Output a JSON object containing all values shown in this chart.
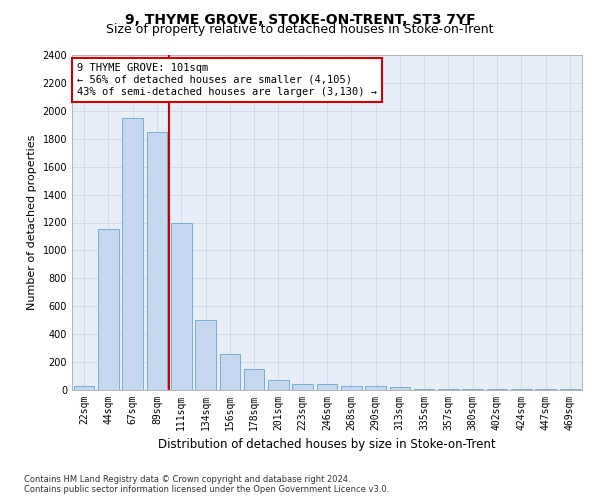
{
  "title": "9, THYME GROVE, STOKE-ON-TRENT, ST3 7YF",
  "subtitle": "Size of property relative to detached houses in Stoke-on-Trent",
  "xlabel": "Distribution of detached houses by size in Stoke-on-Trent",
  "ylabel": "Number of detached properties",
  "categories": [
    "22sqm",
    "44sqm",
    "67sqm",
    "89sqm",
    "111sqm",
    "134sqm",
    "156sqm",
    "178sqm",
    "201sqm",
    "223sqm",
    "246sqm",
    "268sqm",
    "290sqm",
    "313sqm",
    "335sqm",
    "357sqm",
    "380sqm",
    "402sqm",
    "424sqm",
    "447sqm",
    "469sqm"
  ],
  "values": [
    30,
    1150,
    1950,
    1850,
    1200,
    500,
    260,
    150,
    70,
    40,
    40,
    30,
    30,
    20,
    10,
    10,
    10,
    10,
    10,
    5,
    5
  ],
  "bar_color": "#c5d8ef",
  "bar_edge_color": "#7aadd4",
  "grid_color": "#cdd8ea",
  "vline_x": 3.5,
  "vline_color": "#cc0000",
  "annotation_text": "9 THYME GROVE: 101sqm\n← 56% of detached houses are smaller (4,105)\n43% of semi-detached houses are larger (3,130) →",
  "annotation_box_color": "#ffffff",
  "annotation_box_edge": "#cc0000",
  "ylim": [
    0,
    2400
  ],
  "yticks": [
    0,
    200,
    400,
    600,
    800,
    1000,
    1200,
    1400,
    1600,
    1800,
    2000,
    2200,
    2400
  ],
  "footnote": "Contains HM Land Registry data © Crown copyright and database right 2024.\nContains public sector information licensed under the Open Government Licence v3.0.",
  "bg_color": "#e8eef8",
  "title_fontsize": 10,
  "subtitle_fontsize": 9,
  "xlabel_fontsize": 8.5,
  "ylabel_fontsize": 8,
  "tick_fontsize": 7,
  "annotation_fontsize": 7.5,
  "footnote_fontsize": 6
}
